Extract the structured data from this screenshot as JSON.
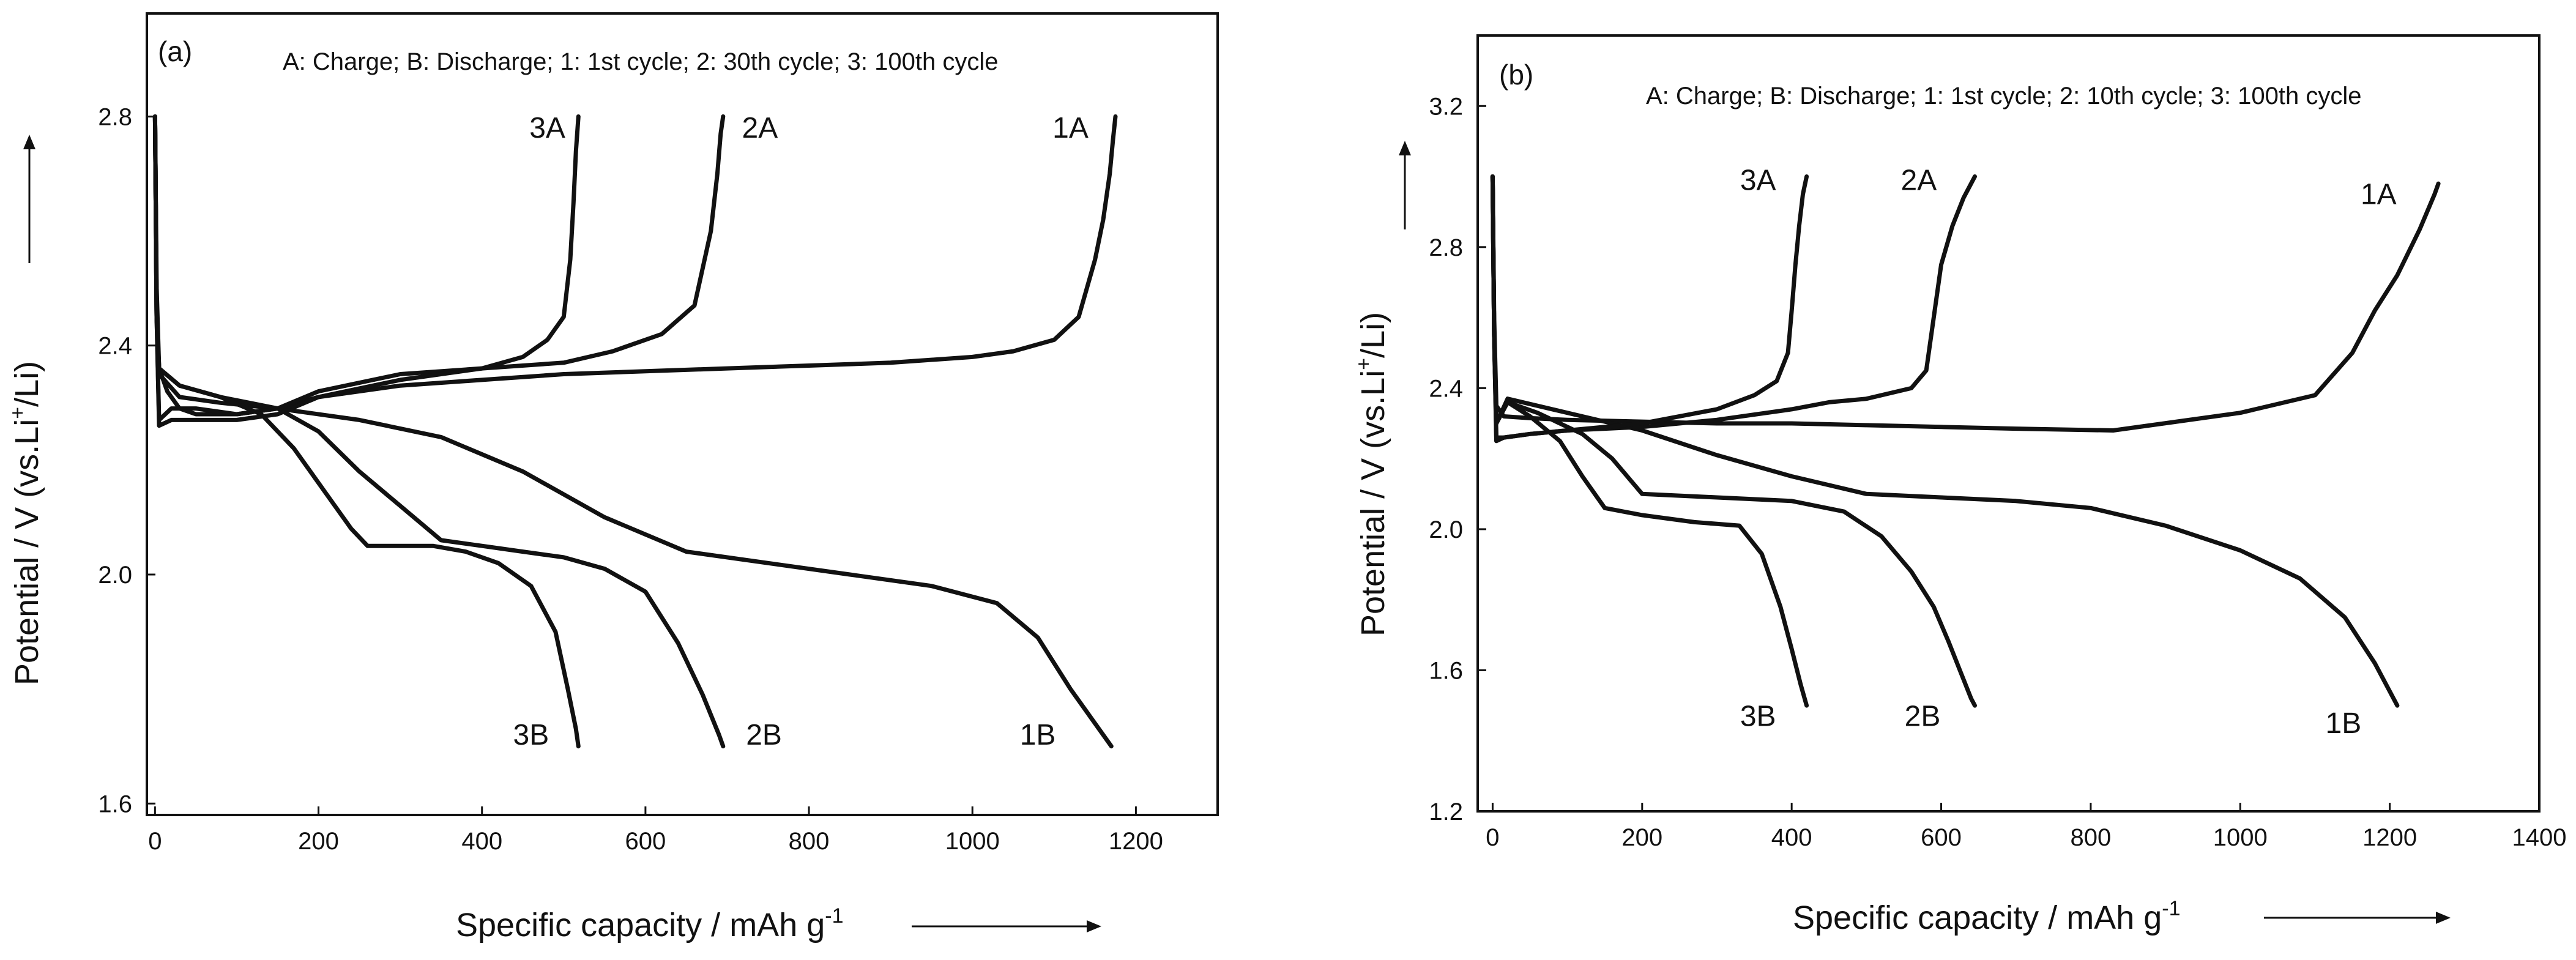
{
  "chart_data": [
    {
      "type": "line",
      "panel": "(a)",
      "legend": "A: Charge; B: Discharge; 1: 1st cycle; 2: 30th cycle; 3: 100th cycle",
      "xlabel": "Specific capacity / mAh g",
      "xlabel_sup": "-1",
      "ylabel_pre": "Potential / V (vs.Li",
      "ylabel_sup": "+",
      "ylabel_post": "/Li)",
      "xlim": [
        -10,
        1300
      ],
      "ylim": [
        1.58,
        2.98
      ],
      "xticks": [
        0,
        200,
        400,
        600,
        800,
        1000,
        1200
      ],
      "yticks": [
        1.6,
        2.0,
        2.4,
        2.8
      ],
      "xtick_labels": [
        "0",
        "200",
        "400",
        "600",
        "800",
        "1000",
        "1200"
      ],
      "ytick_labels": [
        "1.6",
        "2.0",
        "2.4",
        "2.8"
      ],
      "series": [
        {
          "name": "1A",
          "x": [
            0,
            2,
            5,
            15,
            30,
            50,
            100,
            150,
            200,
            300,
            400,
            500,
            600,
            700,
            800,
            900,
            1000,
            1050,
            1100,
            1130,
            1150,
            1160,
            1168,
            1172,
            1175
          ],
          "y": [
            2.8,
            2.5,
            2.36,
            2.32,
            2.29,
            2.28,
            2.28,
            2.29,
            2.31,
            2.33,
            2.34,
            2.35,
            2.355,
            2.36,
            2.365,
            2.37,
            2.38,
            2.39,
            2.41,
            2.45,
            2.55,
            2.62,
            2.7,
            2.76,
            2.8
          ],
          "label_at": [
            1120,
            2.78
          ]
        },
        {
          "name": "1B",
          "x": [
            0,
            2,
            5,
            30,
            80,
            150,
            250,
            350,
            450,
            550,
            650,
            750,
            850,
            950,
            1030,
            1080,
            1120,
            1150,
            1170
          ],
          "y": [
            2.8,
            2.45,
            2.35,
            2.31,
            2.3,
            2.29,
            2.27,
            2.24,
            2.18,
            2.1,
            2.04,
            2.02,
            2.0,
            1.98,
            1.95,
            1.89,
            1.8,
            1.74,
            1.7
          ],
          "label_at": [
            1080,
            1.72
          ]
        },
        {
          "name": "2A",
          "x": [
            0,
            2,
            5,
            20,
            50,
            100,
            150,
            200,
            300,
            400,
            500,
            560,
            620,
            660,
            680,
            688,
            692,
            695
          ],
          "y": [
            2.8,
            2.45,
            2.27,
            2.29,
            2.29,
            2.28,
            2.29,
            2.32,
            2.35,
            2.36,
            2.37,
            2.39,
            2.42,
            2.47,
            2.6,
            2.7,
            2.77,
            2.8
          ],
          "label_at": [
            740,
            2.78
          ]
        },
        {
          "name": "2B",
          "x": [
            0,
            2,
            5,
            30,
            80,
            150,
            200,
            250,
            300,
            350,
            400,
            450,
            500,
            550,
            600,
            640,
            670,
            690,
            695
          ],
          "y": [
            2.8,
            2.45,
            2.36,
            2.33,
            2.31,
            2.29,
            2.25,
            2.18,
            2.12,
            2.06,
            2.05,
            2.04,
            2.03,
            2.01,
            1.97,
            1.88,
            1.79,
            1.72,
            1.7
          ],
          "label_at": [
            745,
            1.72
          ]
        },
        {
          "name": "3A",
          "x": [
            0,
            2,
            5,
            20,
            50,
            100,
            150,
            200,
            300,
            400,
            450,
            480,
            500,
            508,
            512,
            515,
            518
          ],
          "y": [
            2.8,
            2.45,
            2.26,
            2.27,
            2.27,
            2.27,
            2.28,
            2.31,
            2.34,
            2.36,
            2.38,
            2.41,
            2.45,
            2.55,
            2.65,
            2.74,
            2.8
          ],
          "label_at": [
            480,
            2.78
          ]
        },
        {
          "name": "3B",
          "x": [
            0,
            2,
            5,
            30,
            80,
            130,
            170,
            210,
            240,
            260,
            300,
            340,
            380,
            420,
            460,
            490,
            505,
            515,
            518
          ],
          "y": [
            2.8,
            2.45,
            2.36,
            2.33,
            2.31,
            2.28,
            2.22,
            2.14,
            2.08,
            2.05,
            2.05,
            2.05,
            2.04,
            2.02,
            1.98,
            1.9,
            1.8,
            1.73,
            1.7
          ],
          "label_at": [
            460,
            1.72
          ]
        }
      ]
    },
    {
      "type": "line",
      "panel": "(b)",
      "legend": "A: Charge; B: Discharge; 1: 1st cycle; 2: 10th cycle; 3: 100th cycle",
      "xlabel": "Specific capacity / mAh g",
      "xlabel_sup": "-1",
      "ylabel_pre": "Potential / V (vs.Li",
      "ylabel_sup": "+",
      "ylabel_post": "/Li)",
      "xlim": [
        -20,
        1400
      ],
      "ylim": [
        1.2,
        3.4
      ],
      "xticks": [
        0,
        200,
        400,
        600,
        800,
        1000,
        1200,
        1400
      ],
      "yticks": [
        1.2,
        1.6,
        2.0,
        2.4,
        2.8,
        3.2
      ],
      "xtick_labels": [
        "0",
        "200",
        "400",
        "600",
        "800",
        "1000",
        "1200",
        "1400"
      ],
      "ytick_labels": [
        "1.2",
        "1.6",
        "2.0",
        "2.4",
        "2.8",
        "3.2"
      ],
      "series": [
        {
          "name": "1A",
          "x": [
            0,
            2,
            5,
            15,
            50,
            100,
            200,
            300,
            400,
            500,
            600,
            700,
            830,
            1000,
            1100,
            1150,
            1180,
            1210,
            1240,
            1260,
            1265
          ],
          "y": [
            3.0,
            2.6,
            2.35,
            2.32,
            2.315,
            2.31,
            2.305,
            2.3,
            2.3,
            2.295,
            2.29,
            2.285,
            2.28,
            2.33,
            2.38,
            2.5,
            2.62,
            2.72,
            2.85,
            2.95,
            2.98
          ],
          "label_at": [
            1185,
            2.95
          ]
        },
        {
          "name": "1B",
          "x": [
            0,
            2,
            5,
            20,
            60,
            120,
            200,
            300,
            400,
            500,
            600,
            700,
            800,
            900,
            1000,
            1080,
            1140,
            1180,
            1210
          ],
          "y": [
            3.0,
            2.55,
            2.3,
            2.37,
            2.35,
            2.32,
            2.28,
            2.21,
            2.15,
            2.1,
            2.09,
            2.08,
            2.06,
            2.01,
            1.94,
            1.86,
            1.75,
            1.62,
            1.5
          ],
          "label_at": [
            1138,
            1.45
          ]
        },
        {
          "name": "2A",
          "x": [
            0,
            2,
            5,
            15,
            50,
            100,
            200,
            300,
            400,
            450,
            500,
            560,
            580,
            590,
            600,
            615,
            630,
            645
          ],
          "y": [
            3.0,
            2.55,
            2.25,
            2.26,
            2.27,
            2.28,
            2.29,
            2.31,
            2.34,
            2.36,
            2.37,
            2.4,
            2.45,
            2.6,
            2.75,
            2.86,
            2.94,
            3.0
          ],
          "label_at": [
            570,
            2.99
          ]
        },
        {
          "name": "2B",
          "x": [
            0,
            2,
            5,
            20,
            60,
            120,
            160,
            200,
            300,
            400,
            470,
            520,
            560,
            590,
            610,
            625,
            640,
            645
          ],
          "y": [
            3.0,
            2.55,
            2.3,
            2.36,
            2.33,
            2.27,
            2.2,
            2.1,
            2.09,
            2.08,
            2.05,
            1.98,
            1.88,
            1.78,
            1.68,
            1.6,
            1.52,
            1.5
          ],
          "label_at": [
            575,
            1.47
          ]
        },
        {
          "name": "3A",
          "x": [
            0,
            2,
            5,
            15,
            50,
            100,
            200,
            300,
            350,
            380,
            395,
            400,
            405,
            410,
            415,
            420
          ],
          "y": [
            3.0,
            2.55,
            2.26,
            2.26,
            2.27,
            2.28,
            2.3,
            2.34,
            2.38,
            2.42,
            2.5,
            2.62,
            2.75,
            2.86,
            2.95,
            3.0
          ],
          "label_at": [
            355,
            2.99
          ]
        },
        {
          "name": "3B",
          "x": [
            0,
            2,
            5,
            20,
            50,
            90,
            120,
            150,
            200,
            270,
            330,
            360,
            385,
            400,
            412,
            420
          ],
          "y": [
            3.0,
            2.55,
            2.3,
            2.36,
            2.32,
            2.25,
            2.15,
            2.06,
            2.04,
            2.02,
            2.01,
            1.93,
            1.78,
            1.66,
            1.56,
            1.5
          ],
          "label_at": [
            355,
            1.47
          ]
        }
      ]
    }
  ]
}
